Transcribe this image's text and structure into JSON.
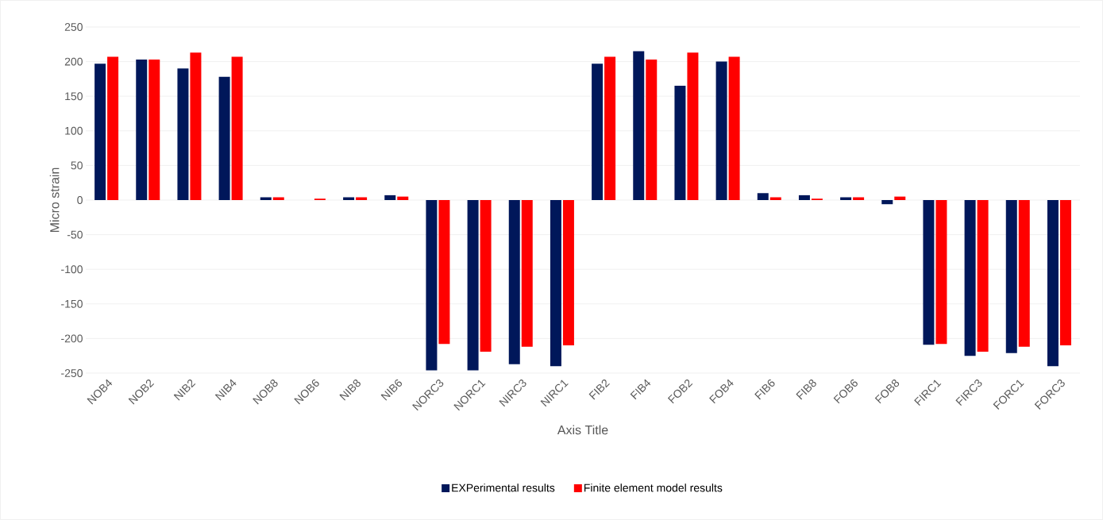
{
  "chart_data": {
    "type": "bar",
    "xlabel": "Axis Title",
    "ylabel": "Micro strain",
    "categories": [
      "NOB4",
      "NOB2",
      "NIB2",
      "NIB4",
      "NOB8",
      "NOB6",
      "NIB8",
      "NIB6",
      "NORC3",
      "NORC1",
      "NIRC3",
      "NIRC1",
      "FIB2",
      "FIB4",
      "FOB2",
      "FOB4",
      "FIB6",
      "FIB8",
      "FOB6",
      "FOB8",
      "FIRC1",
      "FIRC3",
      "FORC1",
      "FORC3"
    ],
    "series": [
      {
        "name": "EXPerimental results",
        "color": "#00175a",
        "values": [
          197,
          203,
          190,
          178,
          4,
          0,
          4,
          7,
          -246,
          -246,
          -237,
          -240,
          197,
          215,
          165,
          200,
          10,
          7,
          4,
          -6,
          -209,
          -225,
          -221,
          -240
        ]
      },
      {
        "name": "Finite element model results",
        "color": "#ff0000",
        "values": [
          207,
          203,
          213,
          207,
          4,
          2,
          4,
          5,
          -208,
          -219,
          -212,
          -210,
          207,
          203,
          213,
          207,
          4,
          2,
          4,
          5,
          -208,
          -219,
          -212,
          -210
        ]
      }
    ],
    "ylim": [
      -250,
      250
    ],
    "yticks": [
      -250,
      -200,
      -150,
      -100,
      -50,
      0,
      50,
      100,
      150,
      200,
      250
    ],
    "grid": "y",
    "legend": "bottom"
  }
}
